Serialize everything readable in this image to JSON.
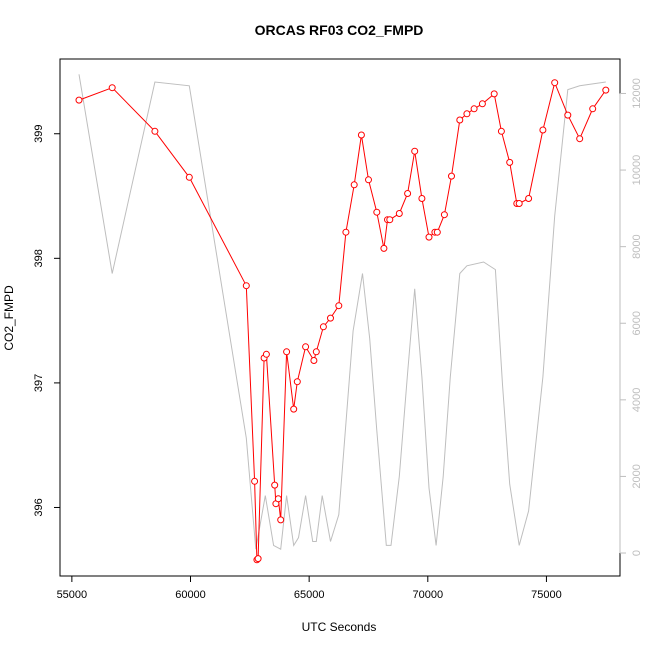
{
  "chart_data": {
    "type": "line",
    "title": "ORCAS RF03 CO2_FMPD",
    "xlabel": "UTC Seconds",
    "ylabel": "CO2_FMPD",
    "xlim": [
      54500,
      78100
    ],
    "ylim": [
      395.45,
      399.6
    ],
    "y2lim": [
      -600,
      12900
    ],
    "x_ticks": [
      55000,
      60000,
      65000,
      70000,
      75000
    ],
    "y_ticks": [
      396,
      397,
      398,
      399
    ],
    "y2_ticks": [
      0,
      2000,
      4000,
      6000,
      8000,
      10000,
      12000
    ],
    "grid": false,
    "series": [
      {
        "role": "primary",
        "color": "#ff0000",
        "marker": "open-circle",
        "x": [
          55300,
          56700,
          58500,
          59950,
          62350,
          62700,
          62800,
          62850,
          63100,
          63200,
          63550,
          63600,
          63700,
          63800,
          64050,
          64350,
          64500,
          64850,
          65200,
          65300,
          65600,
          65900,
          66250,
          66550,
          66900,
          67200,
          67500,
          67850,
          68150,
          68300,
          68400,
          68800,
          69150,
          69450,
          69750,
          70050,
          70300,
          70400,
          70700,
          71000,
          71350,
          71650,
          71950,
          72300,
          72800,
          73100,
          73450,
          73750,
          73850,
          74250,
          74850,
          75350,
          75900,
          76400,
          76950,
          77500
        ],
        "y": [
          399.27,
          399.37,
          399.02,
          398.65,
          397.78,
          396.21,
          395.58,
          395.59,
          397.2,
          397.23,
          396.18,
          396.03,
          396.07,
          395.9,
          397.25,
          396.79,
          397.01,
          397.29,
          397.18,
          397.25,
          397.45,
          397.52,
          397.62,
          398.21,
          398.59,
          398.99,
          398.63,
          398.37,
          398.08,
          398.31,
          398.31,
          398.36,
          398.52,
          398.86,
          398.48,
          398.17,
          398.21,
          398.21,
          398.35,
          398.66,
          399.11,
          399.16,
          399.2,
          399.24,
          399.32,
          399.02,
          398.77,
          398.44,
          398.44,
          398.48,
          399.03,
          399.41,
          399.15,
          398.96,
          399.2,
          399.35
        ]
      },
      {
        "role": "secondary",
        "color": "#bebebe",
        "x": [
          55300,
          56700,
          58500,
          59950,
          62350,
          62750,
          63150,
          63500,
          63800,
          64050,
          64350,
          64550,
          64850,
          65150,
          65300,
          65550,
          65900,
          66250,
          66850,
          67250,
          67550,
          67850,
          68250,
          68450,
          68800,
          69150,
          69450,
          69750,
          70050,
          70350,
          70650,
          70950,
          71350,
          71650,
          72350,
          72850,
          73150,
          73450,
          73850,
          74250,
          74850,
          75350,
          75900,
          76400,
          77500
        ],
        "y": [
          12500,
          7300,
          12300,
          12200,
          3000,
          100,
          1500,
          200,
          100,
          1500,
          200,
          400,
          1500,
          300,
          300,
          1500,
          300,
          1000,
          5800,
          7300,
          5600,
          3200,
          200,
          200,
          2000,
          4700,
          6900,
          4600,
          1700,
          200,
          2000,
          4600,
          7300,
          7500,
          7600,
          7400,
          4400,
          1800,
          200,
          1100,
          4600,
          8800,
          12100,
          12200,
          12300
        ]
      }
    ]
  }
}
